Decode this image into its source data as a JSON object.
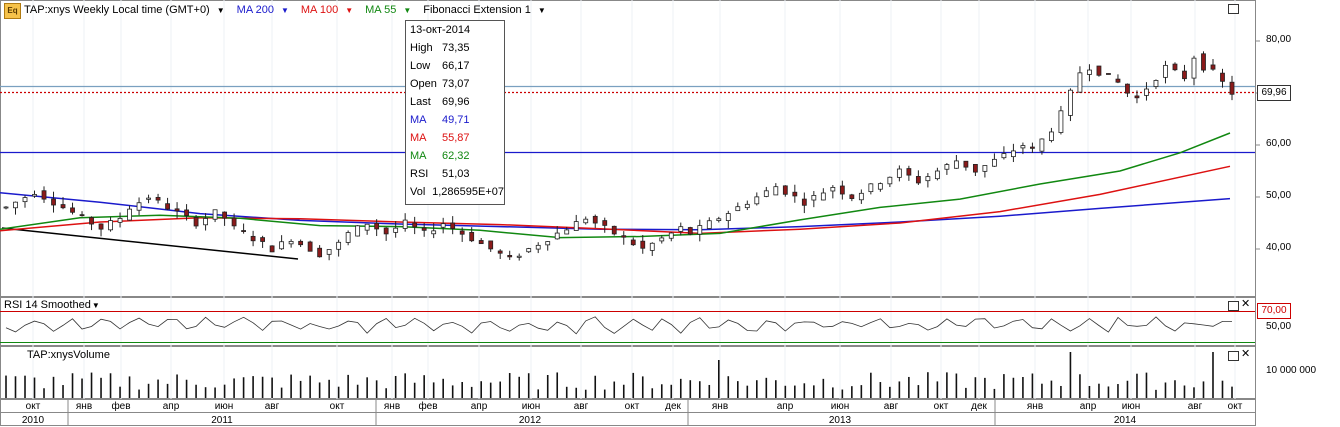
{
  "header": {
    "symbol_label": "TAP:xnys Weekly Local time (GMT+0)",
    "ma200_label": "MA 200",
    "ma100_label": "MA 100",
    "ma55_label": "MA 55",
    "fib_label": "Fibonacci Extension 1",
    "icon_text": "Eq"
  },
  "info_box": {
    "date": "13-окт-2014",
    "rows": [
      {
        "k": "High",
        "v": "73,35",
        "color": "#000000"
      },
      {
        "k": "Low",
        "v": "66,17",
        "color": "#000000"
      },
      {
        "k": "Open",
        "v": "73,07",
        "color": "#000000"
      },
      {
        "k": "Last",
        "v": "69,96",
        "color": "#000000"
      },
      {
        "k": "MA",
        "v": "49,71",
        "color": "#1a1acc"
      },
      {
        "k": "MA",
        "v": "55,87",
        "color": "#dd1111"
      },
      {
        "k": "MA",
        "v": "62,32",
        "color": "#118811"
      },
      {
        "k": "RSI",
        "v": "51,03",
        "color": "#000000"
      },
      {
        "k": "Vol",
        "v": "1,286595E+07",
        "color": "#000000"
      }
    ]
  },
  "price_axis": {
    "ticks": [
      "80,00",
      "70,00",
      "60,00",
      "50,00",
      "40,00"
    ],
    "last_price_label": "69,96"
  },
  "rsi_panel": {
    "title": "RSI 14 Smoothed",
    "level_label": "70,00",
    "tick": "50,00"
  },
  "volume_panel": {
    "title": "TAP:xnysVolume",
    "tick": "10 000 000"
  },
  "time_axis": {
    "months": [
      "окт",
      "янв",
      "фев",
      "апр",
      "июн",
      "авг",
      "окт",
      "янв",
      "фев",
      "апр",
      "июн",
      "авг",
      "окт",
      "дек",
      "янв",
      "апр",
      "июн",
      "авг",
      "окт",
      "дек",
      "янв",
      "апр",
      "июн",
      "авг",
      "окт"
    ],
    "years": [
      "2010",
      "2011",
      "2012",
      "2013",
      "2014"
    ]
  },
  "colors": {
    "ma200": "#1a1acc",
    "ma100": "#dd1111",
    "ma55": "#118811",
    "up": "#ffffff",
    "down": "#8b1a1a"
  },
  "chart_data": {
    "type": "candlestick",
    "title": "TAP:xnys Weekly",
    "price_range": [
      33,
      88
    ],
    "horizontal_lines": [
      71.3,
      58.5
    ],
    "last_price": 69.96,
    "close_series_approx": [
      48,
      49,
      50,
      51,
      50,
      49,
      48,
      47,
      46,
      45,
      44,
      45,
      46,
      48,
      49,
      50,
      49,
      48,
      47,
      46,
      45,
      46,
      47,
      46,
      44,
      43,
      42,
      41,
      40,
      41,
      42,
      41,
      40,
      39,
      40,
      41,
      43,
      44,
      45,
      44,
      43,
      44,
      45,
      44,
      43,
      44,
      45,
      44,
      43,
      42,
      41,
      40,
      39,
      38,
      39,
      40,
      41,
      42,
      43,
      44,
      45,
      46,
      45,
      44,
      43,
      42,
      41,
      40,
      41,
      42,
      43,
      44,
      43,
      44,
      45,
      46,
      47,
      48,
      49,
      50,
      51,
      52,
      51,
      50,
      49,
      50,
      51,
      52,
      51,
      50,
      51,
      52,
      53,
      54,
      55,
      54,
      53,
      54,
      55,
      56,
      57,
      56,
      55,
      56,
      57,
      58,
      59,
      60,
      59,
      61,
      63,
      66,
      70,
      74,
      75,
      74,
      73,
      72,
      70,
      69,
      71,
      73,
      75,
      74,
      73,
      77,
      75,
      74,
      72,
      70
    ]
  }
}
